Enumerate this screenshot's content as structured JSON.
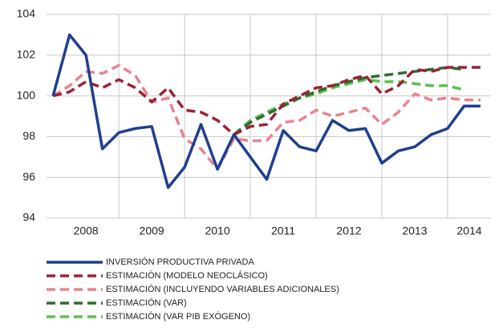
{
  "chart_data": {
    "type": "line",
    "x": [
      2008,
      2008.25,
      2008.5,
      2008.75,
      2009,
      2009.25,
      2009.5,
      2009.75,
      2010,
      2010.25,
      2010.5,
      2010.75,
      2011,
      2011.25,
      2011.5,
      2011.75,
      2012,
      2012.25,
      2012.5,
      2012.75,
      2013,
      2013.25,
      2013.5,
      2013.75,
      2014,
      2014.25,
      2014.5
    ],
    "series": [
      {
        "name": "INVERSIÓN PRODUCTIVA PRIVADA",
        "color": "#1f3f8f",
        "line_style": "solid",
        "values": [
          100,
          103,
          102,
          97.4,
          98.2,
          98.4,
          98.5,
          95.5,
          96.5,
          98.6,
          96.4,
          98.1,
          97.0,
          95.9,
          98.3,
          97.5,
          97.3,
          98.8,
          98.3,
          98.4,
          96.7,
          97.3,
          97.5,
          98.1,
          98.4,
          99.5,
          99.5
        ]
      },
      {
        "name": "ESTIMACIÓN (MODELO NEOCLÁSICO)",
        "color": "#9b2335",
        "line_style": "dashed",
        "values": [
          100,
          100.2,
          100.7,
          100.4,
          100.8,
          100.4,
          99.7,
          100.4,
          99.3,
          99.2,
          98.8,
          98.1,
          98.5,
          98.6,
          99.6,
          100.0,
          100.4,
          100.5,
          100.8,
          101.0,
          100.1,
          100.5,
          101.3,
          101.2,
          101.4,
          101.4,
          101.4
        ]
      },
      {
        "name": "ESTIMACIÓN (INCLUYENDO VARIABLES ADICIONALES)",
        "color": "#e8848e",
        "line_style": "dashed",
        "values": [
          100,
          100.5,
          101.2,
          101.1,
          101.5,
          101.0,
          99.7,
          99.9,
          97.9,
          97.4,
          96.4,
          97.9,
          97.8,
          97.8,
          98.7,
          98.8,
          99.3,
          99.0,
          99.2,
          99.4,
          98.6,
          99.2,
          100.1,
          99.8,
          99.9,
          99.8,
          99.8
        ]
      },
      {
        "name": "ESTIMACIÓN (VAR)",
        "color": "#2e6b30",
        "line_style": "dashed",
        "values": [
          null,
          null,
          null,
          null,
          null,
          null,
          null,
          null,
          null,
          null,
          null,
          98.1,
          98.7,
          99.1,
          99.5,
          99.9,
          100.2,
          100.5,
          100.7,
          100.9,
          101.0,
          101.1,
          101.2,
          101.3,
          101.4,
          101.3,
          null
        ]
      },
      {
        "name": "ESTIMACIÓN (VAR PIB EXÓGENO)",
        "color": "#5cbf4f",
        "line_style": "dashed",
        "values": [
          null,
          null,
          null,
          null,
          null,
          null,
          null,
          null,
          null,
          null,
          null,
          98.1,
          98.8,
          99.2,
          99.6,
          99.9,
          100.1,
          100.4,
          100.6,
          100.8,
          100.7,
          100.7,
          100.6,
          100.5,
          100.5,
          100.3,
          null
        ]
      }
    ],
    "xlim": [
      2007.9,
      2014.66
    ],
    "xticks": [
      {
        "value": 2008.5,
        "label": "2008"
      },
      {
        "value": 2009.5,
        "label": "2009"
      },
      {
        "value": 2010.5,
        "label": "2010"
      },
      {
        "value": 2011.5,
        "label": "2011"
      },
      {
        "value": 2012.5,
        "label": "2012"
      },
      {
        "value": 2013.5,
        "label": "2013"
      },
      {
        "value": 2014.33,
        "label": "2014"
      }
    ],
    "xgrid": [
      2009,
      2010,
      2011,
      2012,
      2013,
      2014
    ],
    "ylim": [
      94,
      104
    ],
    "yticks": [
      94,
      96,
      98,
      100,
      102,
      104
    ],
    "grid": true
  }
}
